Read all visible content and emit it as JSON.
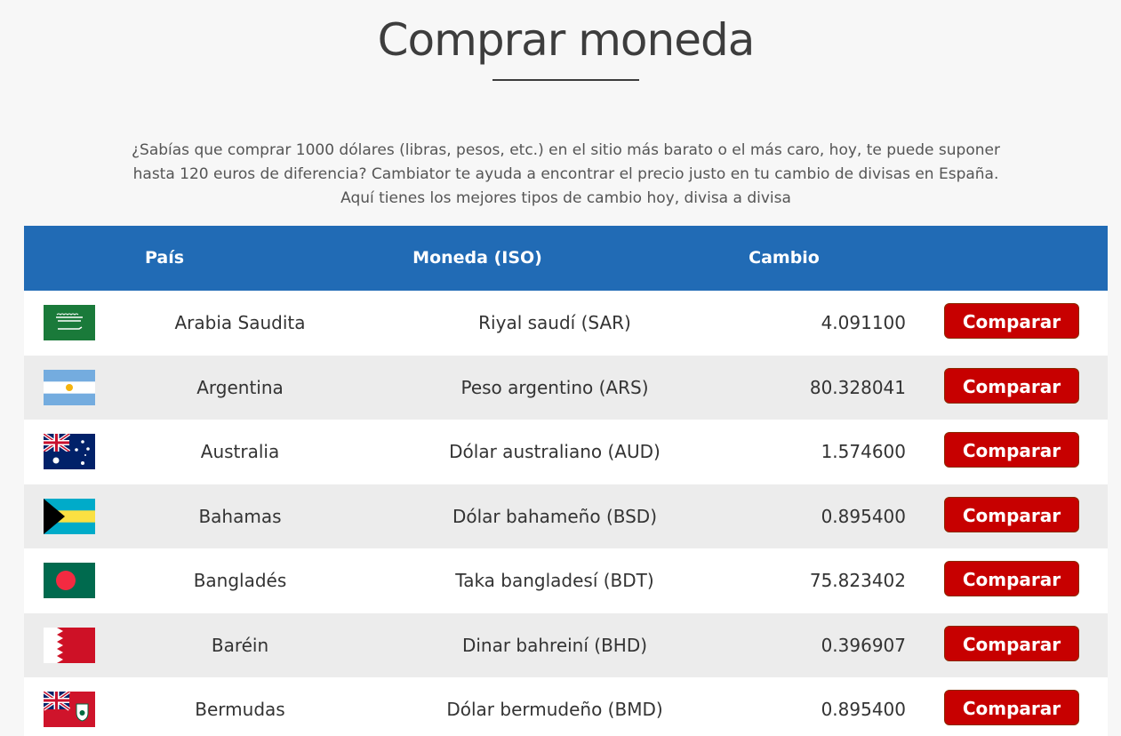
{
  "page": {
    "title": "Comprar moneda",
    "intro_line1": "¿Sabías que comprar 1000 dólares (libras, pesos, etc.) en el sitio más barato o el más caro, hoy, te puede suponer",
    "intro_line2": "hasta 120 euros de diferencia? Cambiator te ayuda a encontrar el precio justo en tu cambio de divisas en España.",
    "intro_line3": "Aquí tienes los mejores tipos de cambio hoy, divisa a divisa"
  },
  "table": {
    "headers": {
      "country": "País",
      "currency": "Moneda (ISO)",
      "rate": "Cambio"
    },
    "rows": [
      {
        "flag": "saudi-arabia-flag-icon",
        "country": "Arabia Saudita",
        "currency": "Riyal saudí (SAR)",
        "rate": "4.091100",
        "button": "Comparar"
      },
      {
        "flag": "argentina-flag-icon",
        "country": "Argentina",
        "currency": "Peso argentino (ARS)",
        "rate": "80.328041",
        "button": "Comparar"
      },
      {
        "flag": "australia-flag-icon",
        "country": "Australia",
        "currency": "Dólar australiano (AUD)",
        "rate": "1.574600",
        "button": "Comparar"
      },
      {
        "flag": "bahamas-flag-icon",
        "country": "Bahamas",
        "currency": "Dólar bahameño (BSD)",
        "rate": "0.895400",
        "button": "Comparar"
      },
      {
        "flag": "bangladesh-flag-icon",
        "country": "Bangladés",
        "currency": "Taka bangladesí (BDT)",
        "rate": "75.823402",
        "button": "Comparar"
      },
      {
        "flag": "bahrain-flag-icon",
        "country": "Baréin",
        "currency": "Dinar bahreiní (BHD)",
        "rate": "0.396907",
        "button": "Comparar"
      },
      {
        "flag": "bermuda-flag-icon",
        "country": "Bermudas",
        "currency": "Dólar bermudeño (BMD)",
        "rate": "0.895400",
        "button": "Comparar"
      }
    ]
  },
  "colors": {
    "header_bg": "#216bb5",
    "button_bg": "#c70000",
    "row_alt_bg": "#ececec",
    "page_bg": "#f7f7f7"
  }
}
